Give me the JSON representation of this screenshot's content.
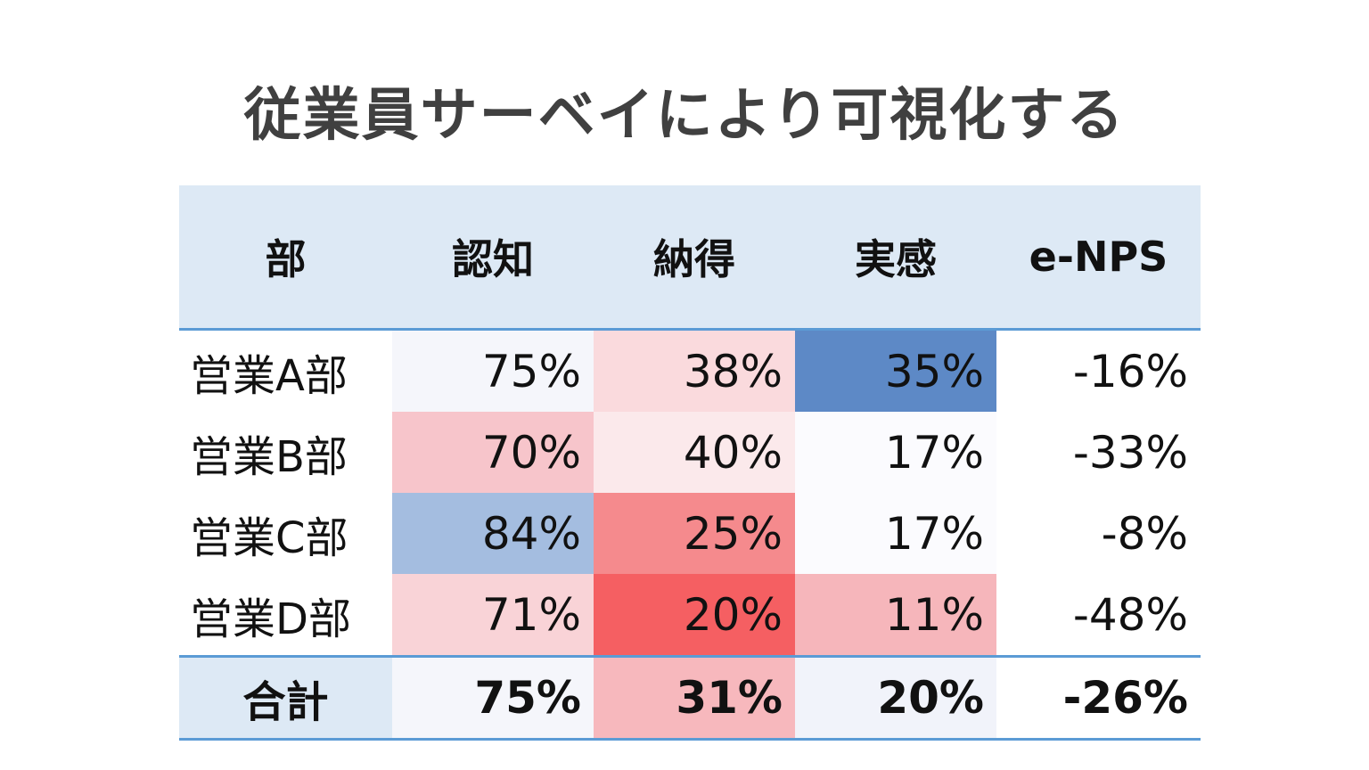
{
  "title": "従業員サーベイにより可視化する",
  "table": {
    "headers": [
      "部",
      "認知",
      "納得",
      "実感",
      "e-NPS"
    ],
    "rows": [
      {
        "dept": "営業A部",
        "values": [
          "75%",
          "38%",
          "35%",
          "-16%"
        ]
      },
      {
        "dept": "営業B部",
        "values": [
          "70%",
          "40%",
          "17%",
          "-33%"
        ]
      },
      {
        "dept": "営業C部",
        "values": [
          "84%",
          "25%",
          "17%",
          "-8%"
        ]
      },
      {
        "dept": "営業D部",
        "values": [
          "71%",
          "20%",
          "11%",
          "-48%"
        ]
      }
    ],
    "total": {
      "dept": "合計",
      "values": [
        "75%",
        "31%",
        "20%",
        "-26%"
      ]
    },
    "cell_colors": [
      [
        "#f5f6fb",
        "#fadadd",
        "#5d89c6",
        "#ffffff"
      ],
      [
        "#f7c5cb",
        "#fbe9eb",
        "#fbfbfe",
        "#ffffff"
      ],
      [
        "#a4bde0",
        "#f58a8d",
        "#fbfbfe",
        "#ffffff"
      ],
      [
        "#f9d3d7",
        "#f55f62",
        "#f6b6bb",
        "#ffffff"
      ]
    ],
    "total_colors": [
      "#f5f6fb",
      "#f7b8bd",
      "#f1f3fa",
      "#ffffff"
    ],
    "header_bg": "#dde9f5",
    "rule_color": "#5b9bd5"
  }
}
